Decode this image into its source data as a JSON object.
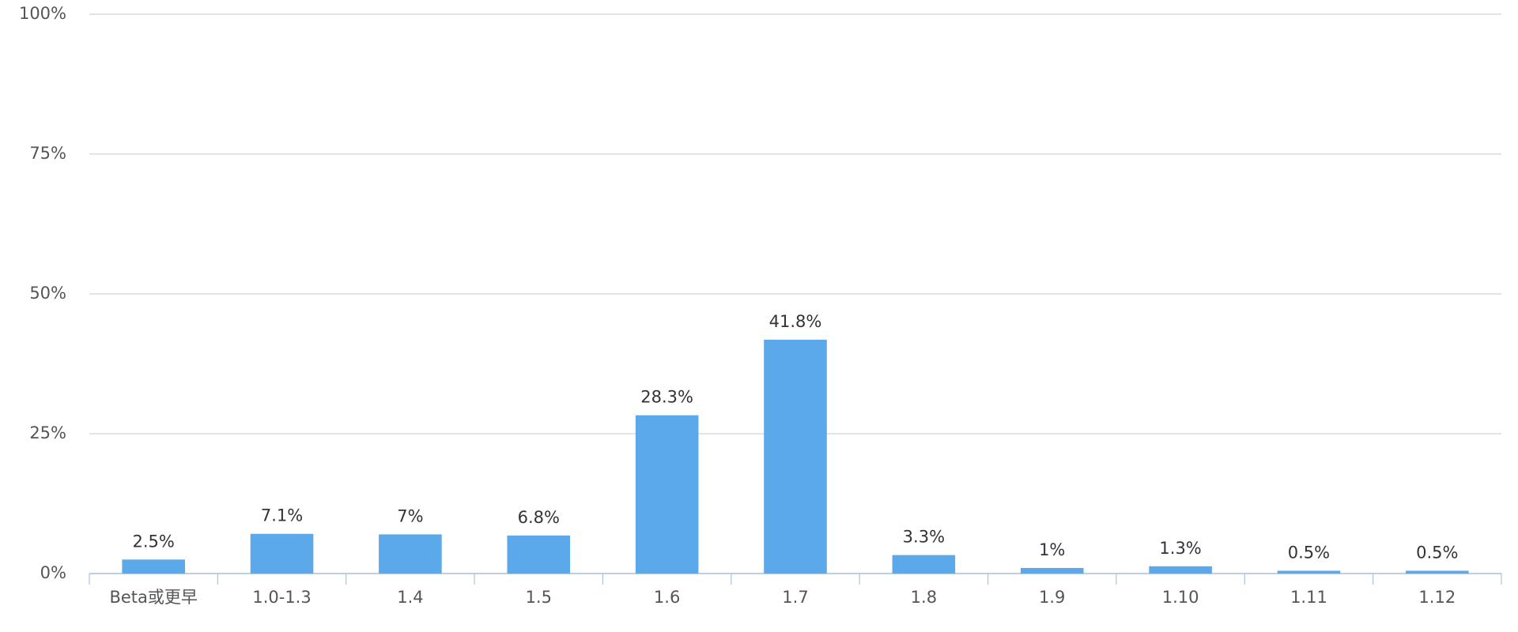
{
  "chart_data": {
    "type": "bar",
    "categories": [
      "Beta或更早",
      "1.0-1.3",
      "1.4",
      "1.5",
      "1.6",
      "1.7",
      "1.8",
      "1.9",
      "1.10",
      "1.11",
      "1.12"
    ],
    "values": [
      2.5,
      7.1,
      7,
      6.8,
      28.3,
      41.8,
      3.3,
      1,
      1.3,
      0.5,
      0.5
    ],
    "value_labels": [
      "2.5%",
      "7.1%",
      "7%",
      "6.8%",
      "28.3%",
      "41.8%",
      "3.3%",
      "1%",
      "1.3%",
      "0.5%",
      "0.5%"
    ],
    "color": "#5ba8ea",
    "ylim": [
      0,
      100
    ],
    "yticks": [
      {
        "value": 0,
        "label": "0%"
      },
      {
        "value": 25,
        "label": "25%"
      },
      {
        "value": 50,
        "label": "50%"
      },
      {
        "value": 75,
        "label": "75%"
      },
      {
        "value": 100,
        "label": "100%"
      }
    ],
    "grid": true
  }
}
